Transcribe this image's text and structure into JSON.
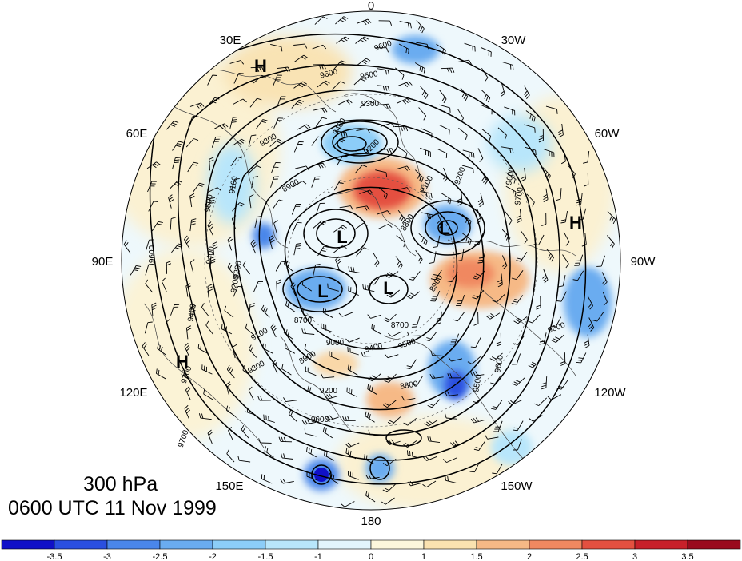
{
  "title": {
    "level": "300 hPa",
    "time": "0600 UTC 11 Nov 1999"
  },
  "longitude_labels": {
    "top": "0",
    "top_left": "30E",
    "top_right": "30W",
    "upper_left": "60E",
    "upper_right": "60W",
    "left": "90E",
    "right": "90W",
    "lower_left": "120E",
    "lower_right": "120W",
    "bottom_left": "150E",
    "bottom_right": "150W",
    "bottom": "180"
  },
  "pressure_centers": [
    {
      "type": "H",
      "label": "H",
      "region": "europe"
    },
    {
      "type": "H",
      "label": "H",
      "region": "north-america-east"
    },
    {
      "type": "H",
      "label": "H",
      "region": "east-asia"
    },
    {
      "type": "L",
      "label": "L",
      "region": "siberia-north"
    },
    {
      "type": "L",
      "label": "L",
      "region": "canada"
    },
    {
      "type": "L",
      "label": "L",
      "region": "siberia-east"
    },
    {
      "type": "L",
      "label": "L",
      "region": "arctic"
    }
  ],
  "contour_labels": [
    "9600",
    "9500",
    "9600",
    "9300",
    "9300",
    "9400",
    "9200",
    "9100",
    "9200",
    "9500",
    "9100",
    "9600",
    "9400",
    "9200",
    "8800",
    "8900",
    "8900",
    "8700",
    "9100",
    "8900",
    "9000",
    "9300",
    "8700",
    "8800",
    "9500",
    "9200",
    "9400",
    "9600",
    "9700",
    "9700",
    "9600",
    "9600",
    "9500",
    "9700",
    "9600",
    "9400",
    "9200"
  ],
  "colorbar": {
    "ticks": [
      "-3.5",
      "-3",
      "-2.5",
      "-2",
      "-1.5",
      "-1",
      "0",
      "1",
      "1.5",
      "2",
      "2.5",
      "3",
      "3.5"
    ],
    "colors": [
      "#1010c8",
      "#2a4fe0",
      "#4a86ea",
      "#6aacf0",
      "#8ccdf8",
      "#b8e6fb",
      "#e2f5fd",
      "#fcf7dc",
      "#fae2b0",
      "#f6b986",
      "#f08860",
      "#e45040",
      "#c8202a",
      "#9a0a1e"
    ]
  },
  "anomaly_patches": [
    {
      "value": 3.0,
      "region": "north-atlantic-greenland"
    },
    {
      "value": 2.5,
      "region": "hudson-bay"
    },
    {
      "value": 1.5,
      "region": "north-pacific"
    },
    {
      "value": 1.0,
      "region": "europe"
    },
    {
      "value": -3.5,
      "region": "west-pacific"
    },
    {
      "value": -3.0,
      "region": "alaska-bering"
    },
    {
      "value": -2.5,
      "region": "siberia"
    },
    {
      "value": -2.0,
      "region": "canada-low"
    },
    {
      "value": -2.0,
      "region": "north-atlantic-east"
    },
    {
      "value": -1.5,
      "region": "west-atlantic"
    }
  ]
}
